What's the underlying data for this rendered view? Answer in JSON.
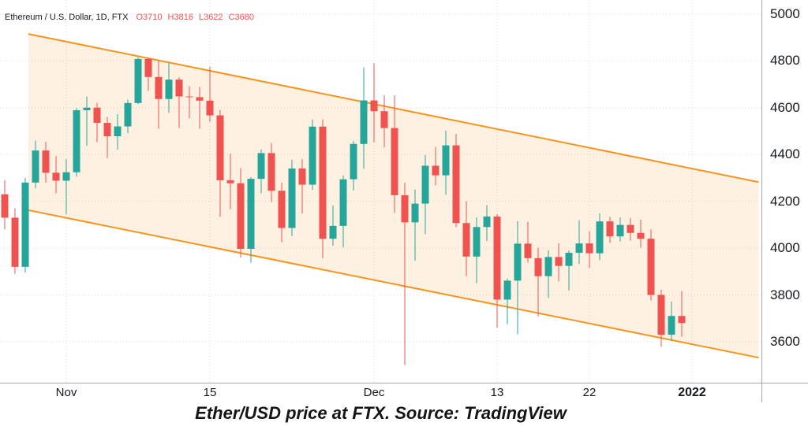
{
  "legend": {
    "symbol": "Ethereum / U.S. Dollar, 1D, FTX",
    "open": "O3710",
    "high": "H3816",
    "low": "L3622",
    "close": "C3680"
  },
  "caption": "Ether/USD price at FTX. Source: TradingView",
  "colors": {
    "up": "#26a69a",
    "down": "#ef5350",
    "channel": "#f7941d",
    "channel_fill": "rgba(247,148,29,0.13)",
    "grid": "#dadde5",
    "axis_line": "#a2a5ae",
    "text": "#16191f",
    "legend_values": "#ef5350"
  },
  "chart_data": {
    "type": "candlestick",
    "title": "Ethereum / U.S. Dollar, 1D, FTX",
    "interval": "1D",
    "exchange": "FTX",
    "last_ohlc": {
      "open": 3710,
      "high": 3816,
      "low": 3622,
      "close": 3680
    },
    "ylim": [
      3425,
      5060
    ],
    "y_ticks": [
      3600,
      3800,
      4000,
      4200,
      4400,
      4600,
      4800,
      5000
    ],
    "x_labels": [
      {
        "label": "Nov",
        "index": 6,
        "bold": false
      },
      {
        "label": "15",
        "index": 20,
        "bold": false
      },
      {
        "label": "Dec",
        "index": 36,
        "bold": false
      },
      {
        "label": "13",
        "index": 48,
        "bold": false
      },
      {
        "label": "22",
        "index": 57,
        "bold": false
      },
      {
        "label": "2022",
        "index": 67,
        "bold": true
      }
    ],
    "grid": true,
    "legend_position": "top-left",
    "channel": {
      "comment": "descending parallel channel, x in candle-index units, prices at each end",
      "x1": 2.3,
      "x2": 73.5,
      "upper": [
        4915,
        4282
      ],
      "lower": [
        4162,
        3532
      ]
    },
    "candles": [
      [
        4230,
        4290,
        4080,
        4130
      ],
      [
        4130,
        4170,
        3890,
        3920
      ],
      [
        3920,
        4300,
        3895,
        4280
      ],
      [
        4280,
        4460,
        4255,
        4417
      ],
      [
        4417,
        4455,
        4280,
        4322
      ],
      [
        4322,
        4393,
        4235,
        4288
      ],
      [
        4288,
        4380,
        4145,
        4324
      ],
      [
        4324,
        4598,
        4305,
        4589
      ],
      [
        4589,
        4648,
        4437,
        4600
      ],
      [
        4600,
        4620,
        4452,
        4535
      ],
      [
        4535,
        4560,
        4385,
        4478
      ],
      [
        4478,
        4572,
        4421,
        4520
      ],
      [
        4520,
        4635,
        4491,
        4620
      ],
      [
        4620,
        4815,
        4615,
        4808
      ],
      [
        4808,
        4812,
        4672,
        4731
      ],
      [
        4731,
        4800,
        4510,
        4637
      ],
      [
        4637,
        4790,
        4578,
        4720
      ],
      [
        4720,
        4730,
        4513,
        4648
      ],
      [
        4648,
        4692,
        4555,
        4645
      ],
      [
        4645,
        4688,
        4510,
        4630
      ],
      [
        4630,
        4775,
        4540,
        4567
      ],
      [
        4567,
        4590,
        4134,
        4290
      ],
      [
        4290,
        4403,
        4166,
        4277
      ],
      [
        4277,
        4342,
        3960,
        3997
      ],
      [
        3997,
        4303,
        3937,
        4296
      ],
      [
        4296,
        4422,
        4234,
        4406
      ],
      [
        4406,
        4450,
        4197,
        4245
      ],
      [
        4245,
        4280,
        4025,
        4086
      ],
      [
        4086,
        4378,
        4051,
        4340
      ],
      [
        4340,
        4380,
        4148,
        4271
      ],
      [
        4271,
        4550,
        4248,
        4519
      ],
      [
        4519,
        4550,
        3956,
        4040
      ],
      [
        4040,
        4182,
        4010,
        4095
      ],
      [
        4095,
        4310,
        4003,
        4294
      ],
      [
        4294,
        4458,
        4246,
        4445
      ],
      [
        4445,
        4772,
        4339,
        4631
      ],
      [
        4631,
        4789,
        4452,
        4585
      ],
      [
        4585,
        4653,
        4431,
        4513
      ],
      [
        4513,
        4653,
        4150,
        4226
      ],
      [
        4226,
        4280,
        3500,
        4110
      ],
      [
        4110,
        4250,
        3946,
        4190
      ],
      [
        4190,
        4398,
        4060,
        4352
      ],
      [
        4352,
        4432,
        4268,
        4311
      ],
      [
        4311,
        4502,
        4228,
        4439
      ],
      [
        4439,
        4488,
        4090,
        4107
      ],
      [
        4107,
        4200,
        3880,
        3964
      ],
      [
        3964,
        4132,
        3850,
        4090
      ],
      [
        4090,
        4183,
        4030,
        4135
      ],
      [
        4135,
        4145,
        3660,
        3780
      ],
      [
        3780,
        3870,
        3675,
        3861
      ],
      [
        3861,
        4115,
        3632,
        4019
      ],
      [
        4019,
        4112,
        3938,
        3957
      ],
      [
        3957,
        4001,
        3708,
        3880
      ],
      [
        3880,
        3991,
        3787,
        3962
      ],
      [
        3962,
        4021,
        3858,
        3924
      ],
      [
        3924,
        3990,
        3818,
        3980
      ],
      [
        3980,
        4119,
        3932,
        4020
      ],
      [
        4020,
        4072,
        3916,
        3978
      ],
      [
        3978,
        4149,
        3948,
        4114
      ],
      [
        4114,
        4134,
        4022,
        4050
      ],
      [
        4050,
        4131,
        4028,
        4099
      ],
      [
        4099,
        4128,
        4032,
        4065
      ],
      [
        4065,
        4122,
        4002,
        4040
      ],
      [
        4040,
        4080,
        3776,
        3800
      ],
      [
        3800,
        3822,
        3578,
        3630
      ],
      [
        3630,
        3772,
        3602,
        3710
      ],
      [
        3710,
        3816,
        3622,
        3680
      ]
    ]
  }
}
